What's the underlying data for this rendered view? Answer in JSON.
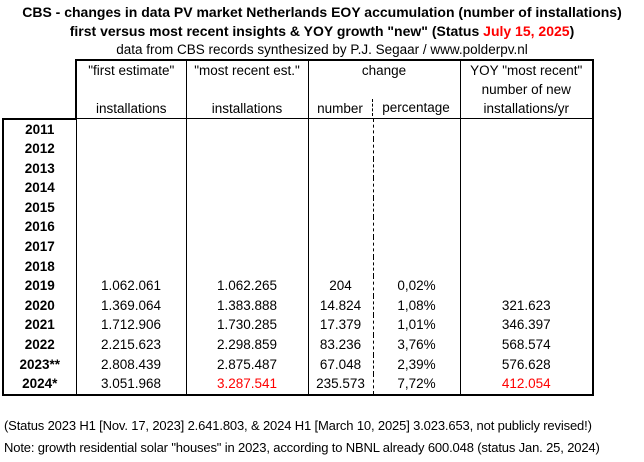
{
  "colors": {
    "accent_red": "#ff0000",
    "border": "#000000"
  },
  "title": {
    "line1": "CBS - changes in data PV market Netherlands EOY accumulation (number of installations)",
    "line2_prefix": "first versus most recent insights & YOY growth \"new\" (Status ",
    "line2_date": "July 15, 2025",
    "line2_suffix": ")",
    "line3": "data from CBS records synthesized by P.J. Segaar / www.polderpv.nl"
  },
  "table_headers": {
    "first_estimate_line1": "\"first estimate\"",
    "first_estimate_line3": "installations",
    "most_recent_line1": "\"most recent est.\"",
    "most_recent_line3": "installations",
    "change_line1": "change",
    "change_sub_number": "number",
    "change_sub_percentage": "percentage",
    "yoy_line1": "YOY \"most recent\"",
    "yoy_line2": "number of new",
    "yoy_line3": "installations/yr"
  },
  "chart_data": {
    "type": "table",
    "title": "CBS - changes in data PV market Netherlands EOY accumulation (number of installations)",
    "columns": [
      "year",
      "\"first estimate\" installations",
      "\"most recent est.\" installations",
      "change number",
      "change percentage",
      "YOY \"most recent\" number of new installations/yr"
    ],
    "rows": [
      {
        "year": "2011",
        "first": "",
        "recent": "",
        "number": "",
        "pct": "",
        "yoy": ""
      },
      {
        "year": "2012",
        "first": "",
        "recent": "",
        "number": "",
        "pct": "",
        "yoy": ""
      },
      {
        "year": "2013",
        "first": "",
        "recent": "",
        "number": "",
        "pct": "",
        "yoy": ""
      },
      {
        "year": "2014",
        "first": "",
        "recent": "",
        "number": "",
        "pct": "",
        "yoy": ""
      },
      {
        "year": "2015",
        "first": "",
        "recent": "",
        "number": "",
        "pct": "",
        "yoy": ""
      },
      {
        "year": "2016",
        "first": "",
        "recent": "",
        "number": "",
        "pct": "",
        "yoy": ""
      },
      {
        "year": "2017",
        "first": "",
        "recent": "",
        "number": "",
        "pct": "",
        "yoy": ""
      },
      {
        "year": "2018",
        "first": "",
        "recent": "",
        "number": "",
        "pct": "",
        "yoy": ""
      },
      {
        "year": "2019",
        "first": "1.062.061",
        "recent": "1.062.265",
        "number": "204",
        "pct": "0,02%",
        "yoy": ""
      },
      {
        "year": "2020",
        "first": "1.369.064",
        "recent": "1.383.888",
        "number": "14.824",
        "pct": "1,08%",
        "yoy": "321.623"
      },
      {
        "year": "2021",
        "first": "1.712.906",
        "recent": "1.730.285",
        "number": "17.379",
        "pct": "1,01%",
        "yoy": "346.397"
      },
      {
        "year": "2022",
        "first": "2.215.623",
        "recent": "2.298.859",
        "number": "83.236",
        "pct": "3,76%",
        "yoy": "568.574"
      },
      {
        "year": "2023**",
        "first": "2.808.439",
        "recent": "2.875.487",
        "number": "67.048",
        "pct": "2,39%",
        "yoy": "576.628"
      },
      {
        "year": "2024*",
        "first": "3.051.968",
        "recent": "3.287.541",
        "number": "235.573",
        "pct": "7,72%",
        "yoy": "412.054",
        "recent_red": true,
        "yoy_red": true
      }
    ]
  },
  "footnotes": {
    "line1": "(Status 2023 H1 [Nov. 17, 2023] 2.641.803, & 2024 H1 [March 10, 2025] 3.023.653, not publicly revised!)",
    "line2": "Note: growth residential solar \"houses\" in 2023, according to NBNL already 600.048 (status Jan. 25, 2024)"
  }
}
